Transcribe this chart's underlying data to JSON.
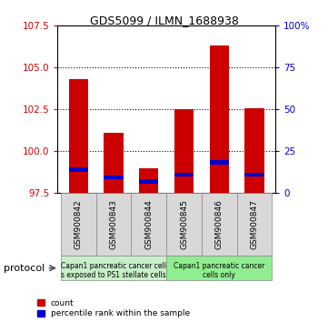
{
  "title": "GDS5099 / ILMN_1688938",
  "samples": [
    "GSM900842",
    "GSM900843",
    "GSM900844",
    "GSM900845",
    "GSM900846",
    "GSM900847"
  ],
  "count_values": [
    104.3,
    101.1,
    99.0,
    102.5,
    106.3,
    102.6
  ],
  "percentile_values": [
    14.0,
    9.5,
    7.0,
    11.0,
    18.5,
    11.0
  ],
  "ylim_left": [
    97.5,
    107.5
  ],
  "ylim_right": [
    0,
    100
  ],
  "yticks_left": [
    97.5,
    100,
    102.5,
    105,
    107.5
  ],
  "yticks_right": [
    0,
    25,
    50,
    75,
    100
  ],
  "ytick_labels_right": [
    "0",
    "25",
    "50",
    "75",
    "100%"
  ],
  "bar_bottom": 97.5,
  "group1_label_line1": "Capan1 pancreatic cancer cell",
  "group1_label_line2": "s exposed to PS1 stellate cells",
  "group2_label_line1": "Capan1 pancreatic cancer",
  "group2_label_line2": "cells only",
  "group1_count": 3,
  "group2_count": 3,
  "group1_color": "#c8f0c8",
  "group2_color": "#90ee90",
  "bar_color": "#cc0000",
  "percentile_color": "#0000cc",
  "left_tick_color": "#cc0000",
  "right_tick_color": "#0000cc",
  "bg_color": "#d8d8d8",
  "protocol_label": "protocol",
  "legend_count": "count",
  "legend_pct": "percentile rank within the sample"
}
